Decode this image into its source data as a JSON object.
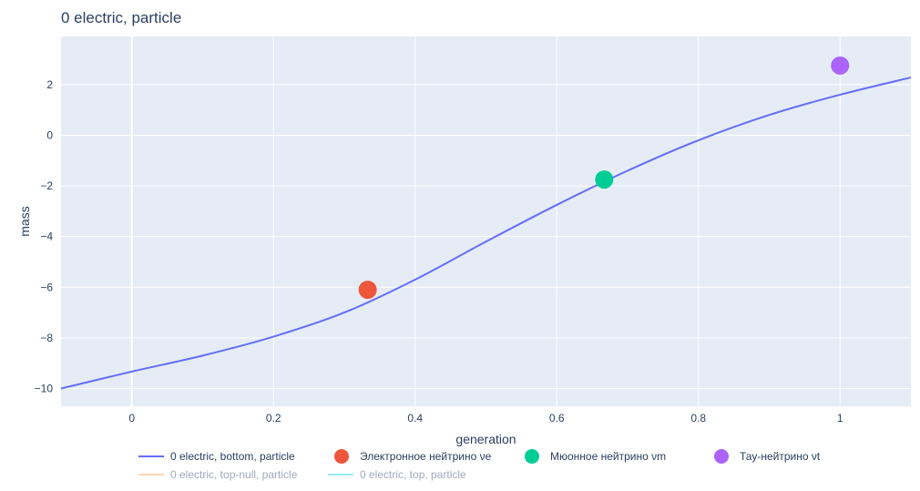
{
  "chart_data": {
    "type": "line",
    "title": "0 electric, particle",
    "xlabel": "generation",
    "ylabel": "mass",
    "xlim": [
      -0.1,
      1.1
    ],
    "ylim": [
      -10.7,
      3.9
    ],
    "x_ticks": [
      0,
      0.2,
      0.4,
      0.6,
      0.8,
      1
    ],
    "y_ticks": [
      -10,
      -8,
      -6,
      -4,
      -2,
      0,
      2
    ],
    "grid": true,
    "legend_position": "bottom",
    "colors": {
      "plot_bg": "#e5ecf6",
      "grid": "#ffffff",
      "text": "#2a3f5f"
    },
    "series": [
      {
        "name": "0 electric, bottom, particle",
        "kind": "line",
        "color": "#636efa",
        "visible": true,
        "x": [
          -0.1,
          0.0,
          0.1,
          0.2,
          0.3,
          0.4,
          0.5,
          0.6,
          0.7,
          0.8,
          0.9,
          1.0,
          1.1
        ],
        "y": [
          -10.0,
          -9.33,
          -8.7,
          -7.95,
          -7.0,
          -5.7,
          -4.2,
          -2.75,
          -1.4,
          -0.2,
          0.8,
          1.6,
          2.28
        ]
      },
      {
        "name": "Электронное нейтрино νe",
        "kind": "marker",
        "color": "#ef553b",
        "visible": true,
        "x": [
          0.333
        ],
        "y": [
          -6.1
        ]
      },
      {
        "name": "Мюонное нейтрино νm",
        "kind": "marker",
        "color": "#00cc96",
        "visible": true,
        "x": [
          0.667
        ],
        "y": [
          -1.75
        ]
      },
      {
        "name": "Тау-нейтрино νt",
        "kind": "marker",
        "color": "#ab63fa",
        "visible": true,
        "x": [
          1.0
        ],
        "y": [
          2.75
        ]
      },
      {
        "name": "0 electric, top-null, particle",
        "kind": "line",
        "color": "#ffa15a",
        "visible": false
      },
      {
        "name": "0 electric, top, particle",
        "kind": "line",
        "color": "#19d3f3",
        "visible": false
      }
    ]
  }
}
